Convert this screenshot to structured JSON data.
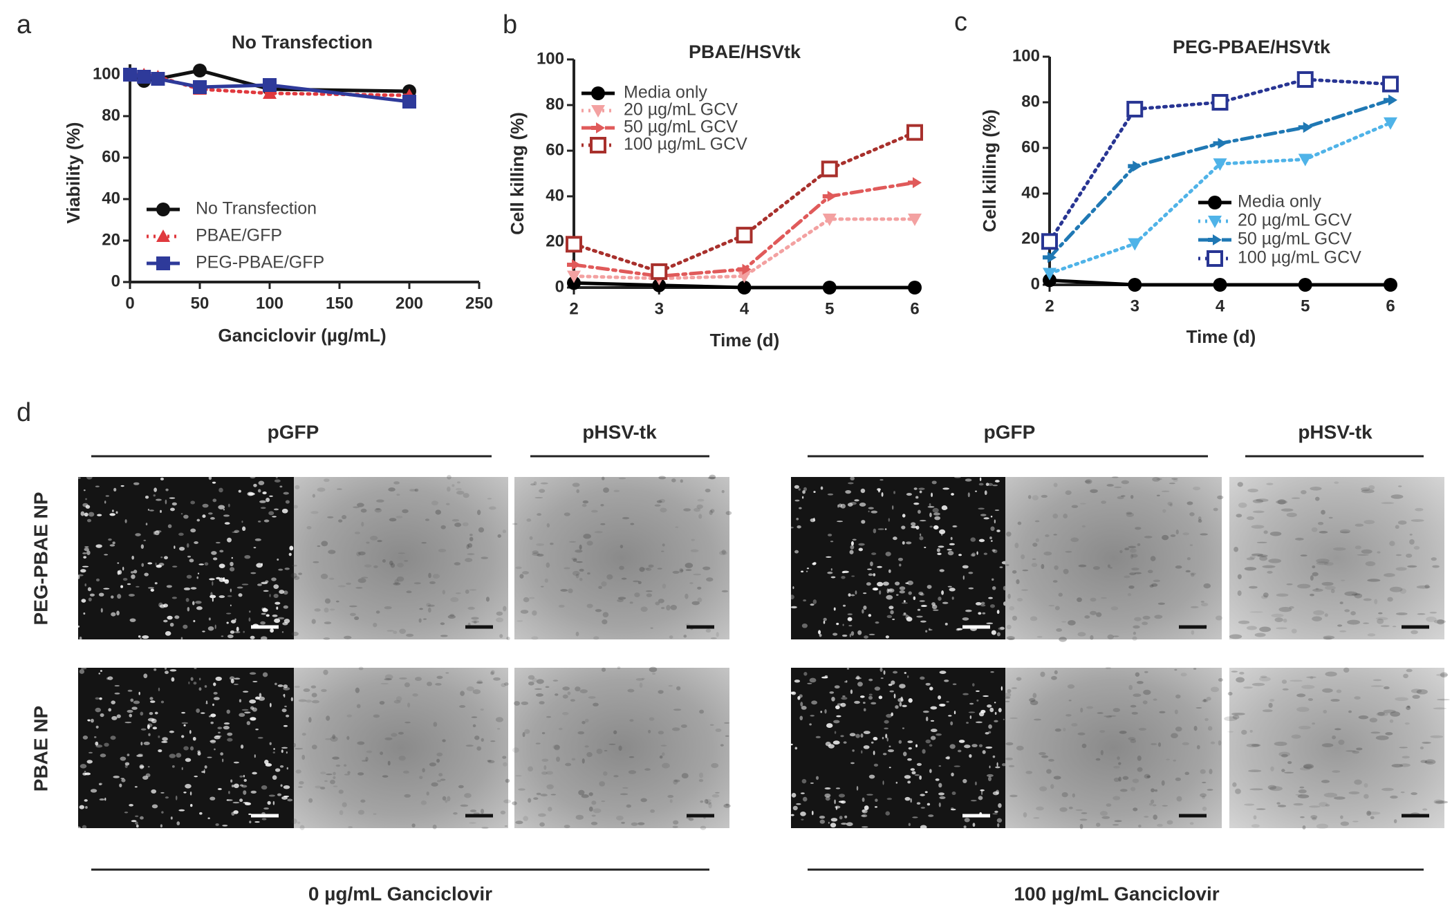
{
  "chart_data": [
    {
      "type": "line",
      "panel_label": "a",
      "title": "No Transfection",
      "x_label": "Ganciclovir (µg/mL)",
      "y_label": "Viability (%)",
      "x": [
        0,
        10,
        20,
        50,
        100,
        200
      ],
      "xlim": [
        0,
        250
      ],
      "xticks": [
        0,
        50,
        100,
        150,
        200,
        250
      ],
      "ylim": [
        0,
        105
      ],
      "yticks": [
        0,
        20,
        40,
        60,
        80,
        100
      ],
      "series": [
        {
          "name": "No Transfection",
          "color": "#111111",
          "marker": "circle",
          "dash": "solid",
          "values": [
            100,
            97,
            98,
            102,
            93,
            92
          ]
        },
        {
          "name": "PBAE/GFP",
          "color": "#e0393e",
          "marker": "triangle-up",
          "dash": "dotted",
          "values": [
            100,
            100,
            99,
            93,
            91,
            90
          ]
        },
        {
          "name": "PEG-PBAE/GFP",
          "color": "#2e3a9a",
          "marker": "square",
          "dash": "solid",
          "values": [
            100,
            99,
            98,
            94,
            95,
            87
          ]
        }
      ]
    },
    {
      "type": "line",
      "panel_label": "b",
      "title": "PBAE/HSVtk",
      "x_label": "Time (d)",
      "y_label": "Cell killing (%)",
      "x": [
        2,
        3,
        4,
        5,
        6
      ],
      "xlim": [
        2,
        6
      ],
      "xticks": [
        2,
        3,
        4,
        5,
        6
      ],
      "ylim": [
        0,
        100
      ],
      "yticks": [
        0,
        20,
        40,
        60,
        80,
        100
      ],
      "series": [
        {
          "name": "Media only",
          "color": "#000000",
          "marker": "circle",
          "dash": "solid",
          "values": [
            2,
            1,
            0,
            0,
            0
          ]
        },
        {
          "name": "20 µg/mL GCV",
          "color": "#f3a1a1",
          "marker": "triangle-down",
          "dash": "dotted",
          "values": [
            5,
            4,
            5,
            30,
            30
          ]
        },
        {
          "name": "50 µg/mL GCV",
          "color": "#e05a5a",
          "marker": "arrow",
          "dash": "dashdot",
          "values": [
            10,
            5,
            8,
            40,
            46
          ]
        },
        {
          "name": "100 µg/mL GCV",
          "color": "#a8302c",
          "marker": "square-open",
          "dash": "dotted",
          "values": [
            19,
            7,
            23,
            52,
            68
          ]
        }
      ]
    },
    {
      "type": "line",
      "panel_label": "c",
      "title": "PEG-PBAE/HSVtk",
      "x_label": "Time (d)",
      "y_label": "Cell killing (%)",
      "x": [
        2,
        3,
        4,
        5,
        6
      ],
      "xlim": [
        2,
        6
      ],
      "xticks": [
        2,
        3,
        4,
        5,
        6
      ],
      "ylim": [
        0,
        100
      ],
      "yticks": [
        0,
        20,
        40,
        60,
        80,
        100
      ],
      "series": [
        {
          "name": "Media only",
          "color": "#000000",
          "marker": "circle",
          "dash": "solid",
          "values": [
            2,
            0,
            0,
            0,
            0
          ]
        },
        {
          "name": "20 µg/mL GCV",
          "color": "#4fb3e8",
          "marker": "triangle-down",
          "dash": "dotted",
          "values": [
            5,
            18,
            53,
            55,
            71
          ]
        },
        {
          "name": "50 µg/mL GCV",
          "color": "#1f78b4",
          "marker": "arrow",
          "dash": "dashdot",
          "values": [
            12,
            52,
            62,
            69,
            81
          ]
        },
        {
          "name": "100 µg/mL GCV",
          "color": "#283593",
          "marker": "square-open",
          "dash": "dotted",
          "values": [
            19,
            77,
            80,
            90,
            88
          ]
        }
      ]
    }
  ],
  "panel_d": {
    "panel_label": "d",
    "column_headers": [
      "pGFP",
      "pHSV-tk",
      "pGFP",
      "pHSV-tk"
    ],
    "row_labels": [
      "PEG-PBAE NP",
      "PBAE NP"
    ],
    "conditions": [
      "0 µg/mL Ganciclovir",
      "100 µg/mL Ganciclovir"
    ]
  }
}
